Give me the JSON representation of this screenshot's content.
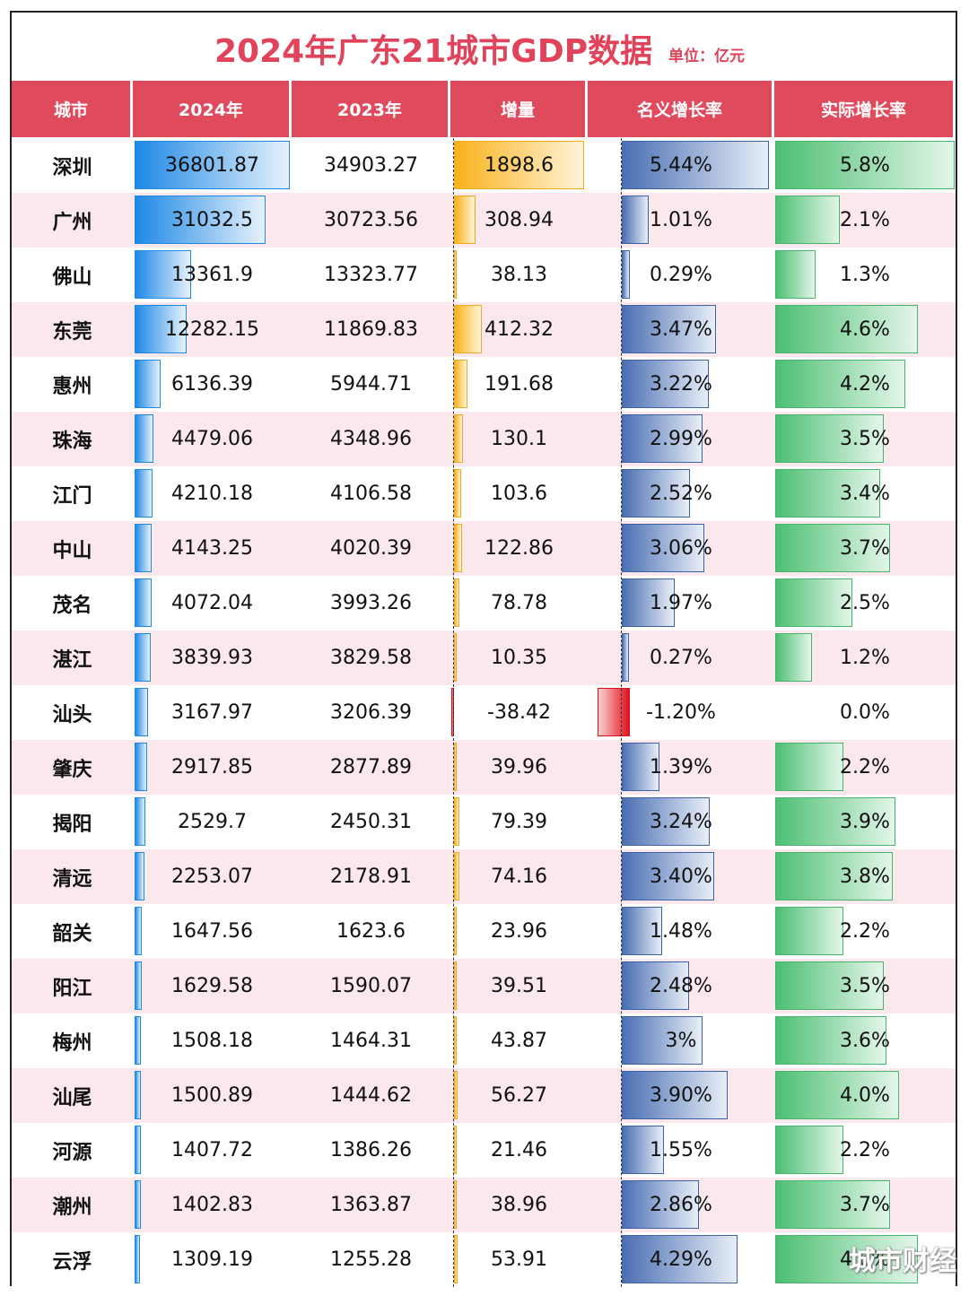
{
  "title": "2024年广东21城市GDP数据",
  "unit": "单位：亿元",
  "watermark": "城市财经",
  "headers": [
    "城市",
    "2024年",
    "2023年",
    "增量",
    "名义增长率",
    "实际增长率"
  ],
  "colors": {
    "header_bg": "#e04a5d",
    "title": "#e0435a",
    "bar_2024": "#1e88e5",
    "bar_increase_pos": "#f9b21b",
    "bar_increase_neg": "#e0141e",
    "bar_nominal": "#4a6fb2",
    "bar_real": "#4cbf72",
    "row_alt": "#fbe8ec"
  },
  "chart_data": {
    "type": "table",
    "columns": [
      "城市",
      "2024年",
      "2023年",
      "增量",
      "名义增长率",
      "实际增长率"
    ],
    "rows": [
      {
        "city": "深圳",
        "gdp2024": "36801.87",
        "gdp2023": "34903.27",
        "increase": "1898.6",
        "nominal": "5.44%",
        "real": "5.8%"
      },
      {
        "city": "广州",
        "gdp2024": "31032.5",
        "gdp2023": "30723.56",
        "increase": "308.94",
        "nominal": "1.01%",
        "real": "2.1%"
      },
      {
        "city": "佛山",
        "gdp2024": "13361.9",
        "gdp2023": "13323.77",
        "increase": "38.13",
        "nominal": "0.29%",
        "real": "1.3%"
      },
      {
        "city": "东莞",
        "gdp2024": "12282.15",
        "gdp2023": "11869.83",
        "increase": "412.32",
        "nominal": "3.47%",
        "real": "4.6%"
      },
      {
        "city": "惠州",
        "gdp2024": "6136.39",
        "gdp2023": "5944.71",
        "increase": "191.68",
        "nominal": "3.22%",
        "real": "4.2%"
      },
      {
        "city": "珠海",
        "gdp2024": "4479.06",
        "gdp2023": "4348.96",
        "increase": "130.1",
        "nominal": "2.99%",
        "real": "3.5%"
      },
      {
        "city": "江门",
        "gdp2024": "4210.18",
        "gdp2023": "4106.58",
        "increase": "103.6",
        "nominal": "2.52%",
        "real": "3.4%"
      },
      {
        "city": "中山",
        "gdp2024": "4143.25",
        "gdp2023": "4020.39",
        "increase": "122.86",
        "nominal": "3.06%",
        "real": "3.7%"
      },
      {
        "city": "茂名",
        "gdp2024": "4072.04",
        "gdp2023": "3993.26",
        "increase": "78.78",
        "nominal": "1.97%",
        "real": "2.5%"
      },
      {
        "city": "湛江",
        "gdp2024": "3839.93",
        "gdp2023": "3829.58",
        "increase": "10.35",
        "nominal": "0.27%",
        "real": "1.2%"
      },
      {
        "city": "汕头",
        "gdp2024": "3167.97",
        "gdp2023": "3206.39",
        "increase": "-38.42",
        "nominal": "-1.20%",
        "real": "0.0%"
      },
      {
        "city": "肇庆",
        "gdp2024": "2917.85",
        "gdp2023": "2877.89",
        "increase": "39.96",
        "nominal": "1.39%",
        "real": "2.2%"
      },
      {
        "city": "揭阳",
        "gdp2024": "2529.7",
        "gdp2023": "2450.31",
        "increase": "79.39",
        "nominal": "3.24%",
        "real": "3.9%"
      },
      {
        "city": "清远",
        "gdp2024": "2253.07",
        "gdp2023": "2178.91",
        "increase": "74.16",
        "nominal": "3.40%",
        "real": "3.8%"
      },
      {
        "city": "韶关",
        "gdp2024": "1647.56",
        "gdp2023": "1623.6",
        "increase": "23.96",
        "nominal": "1.48%",
        "real": "2.2%"
      },
      {
        "city": "阳江",
        "gdp2024": "1629.58",
        "gdp2023": "1590.07",
        "increase": "39.51",
        "nominal": "2.48%",
        "real": "3.5%"
      },
      {
        "city": "梅州",
        "gdp2024": "1508.18",
        "gdp2023": "1464.31",
        "increase": "43.87",
        "nominal": "3%",
        "real": "3.6%"
      },
      {
        "city": "汕尾",
        "gdp2024": "1500.89",
        "gdp2023": "1444.62",
        "increase": "56.27",
        "nominal": "3.90%",
        "real": "4.0%"
      },
      {
        "city": "河源",
        "gdp2024": "1407.72",
        "gdp2023": "1386.26",
        "increase": "21.46",
        "nominal": "1.55%",
        "real": "2.2%"
      },
      {
        "city": "潮州",
        "gdp2024": "1402.83",
        "gdp2023": "1363.87",
        "increase": "38.96",
        "nominal": "2.86%",
        "real": "3.7%"
      },
      {
        "city": "云浮",
        "gdp2024": "1309.19",
        "gdp2023": "1255.28",
        "increase": "53.91",
        "nominal": "4.29%",
        "real": "4.6%"
      }
    ]
  }
}
